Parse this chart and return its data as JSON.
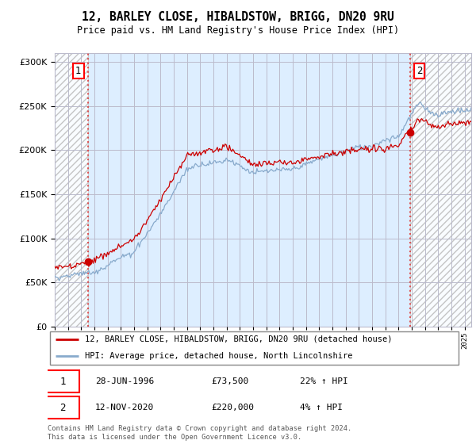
{
  "title": "12, BARLEY CLOSE, HIBALDSTOW, BRIGG, DN20 9RU",
  "subtitle": "Price paid vs. HM Land Registry's House Price Index (HPI)",
  "legend_line1": "12, BARLEY CLOSE, HIBALDSTOW, BRIGG, DN20 9RU (detached house)",
  "legend_line2": "HPI: Average price, detached house, North Lincolnshire",
  "annotation1_date": "28-JUN-1996",
  "annotation1_price": "£73,500",
  "annotation1_hpi": "22% ↑ HPI",
  "annotation2_date": "12-NOV-2020",
  "annotation2_price": "£220,000",
  "annotation2_hpi": "4% ↑ HPI",
  "footer": "Contains HM Land Registry data © Crown copyright and database right 2024.\nThis data is licensed under the Open Government Licence v3.0.",
  "sale1_year": 1996.49,
  "sale1_price": 73500,
  "sale2_year": 2020.87,
  "sale2_price": 220000,
  "xmin": 1994.0,
  "xmax": 2025.5,
  "ymin": 0,
  "ymax": 310000,
  "sale_color": "#cc0000",
  "hpi_color": "#88aacc",
  "chart_bg_color": "#ddeeff",
  "hatch_bg_color": "#e8e8e8",
  "grid_color": "#bbbbcc",
  "dashed_line_color": "#dd4444"
}
